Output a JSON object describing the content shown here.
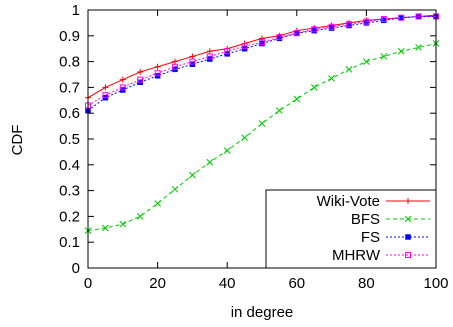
{
  "chart_data": {
    "type": "line",
    "title": "",
    "xlabel": "in degree",
    "ylabel": "CDF",
    "xlim": [
      0,
      100
    ],
    "ylim": [
      0,
      1
    ],
    "x_ticks": [
      0,
      20,
      40,
      60,
      80,
      100
    ],
    "y_ticks": [
      0,
      0.1,
      0.2,
      0.3,
      0.4,
      0.5,
      0.6,
      0.7,
      0.8,
      0.9,
      1
    ],
    "grid": false,
    "legend_position": "bottom-right",
    "series": [
      {
        "name": "Wiki-Vote",
        "color": "#ff0000",
        "line": "solid",
        "marker": "plus",
        "x": [
          0,
          5,
          10,
          15,
          20,
          25,
          30,
          35,
          40,
          45,
          50,
          55,
          60,
          65,
          70,
          75,
          80,
          85,
          90,
          95,
          100
        ],
        "y": [
          0.66,
          0.7,
          0.73,
          0.76,
          0.78,
          0.8,
          0.82,
          0.84,
          0.85,
          0.87,
          0.89,
          0.9,
          0.92,
          0.93,
          0.94,
          0.95,
          0.96,
          0.965,
          0.97,
          0.975,
          0.98
        ]
      },
      {
        "name": "BFS",
        "color": "#00cc00",
        "line": "dashed",
        "marker": "x",
        "x": [
          0,
          5,
          10,
          15,
          20,
          25,
          30,
          35,
          40,
          45,
          50,
          55,
          60,
          65,
          70,
          75,
          80,
          85,
          90,
          95,
          100
        ],
        "y": [
          0.145,
          0.155,
          0.17,
          0.2,
          0.25,
          0.305,
          0.36,
          0.41,
          0.455,
          0.505,
          0.56,
          0.61,
          0.655,
          0.7,
          0.735,
          0.77,
          0.8,
          0.82,
          0.84,
          0.855,
          0.87
        ]
      },
      {
        "name": "FS",
        "color": "#0000ff",
        "line": "dotted",
        "marker": "square-filled",
        "x": [
          0,
          5,
          10,
          15,
          20,
          25,
          30,
          35,
          40,
          45,
          50,
          55,
          60,
          65,
          70,
          75,
          80,
          85,
          90,
          95,
          100
        ],
        "y": [
          0.61,
          0.66,
          0.69,
          0.72,
          0.745,
          0.77,
          0.79,
          0.81,
          0.83,
          0.85,
          0.87,
          0.89,
          0.91,
          0.92,
          0.93,
          0.94,
          0.95,
          0.96,
          0.97,
          0.975,
          0.975
        ]
      },
      {
        "name": "MHRW",
        "color": "#ff00ff",
        "line": "dotted",
        "marker": "square-open",
        "x": [
          0,
          5,
          10,
          15,
          20,
          25,
          30,
          35,
          40,
          45,
          50,
          55,
          60,
          65,
          70,
          75,
          80,
          85,
          90,
          95,
          100
        ],
        "y": [
          0.63,
          0.67,
          0.7,
          0.73,
          0.755,
          0.78,
          0.8,
          0.82,
          0.84,
          0.86,
          0.875,
          0.895,
          0.91,
          0.925,
          0.935,
          0.945,
          0.955,
          0.965,
          0.97,
          0.975,
          0.975
        ]
      }
    ]
  }
}
